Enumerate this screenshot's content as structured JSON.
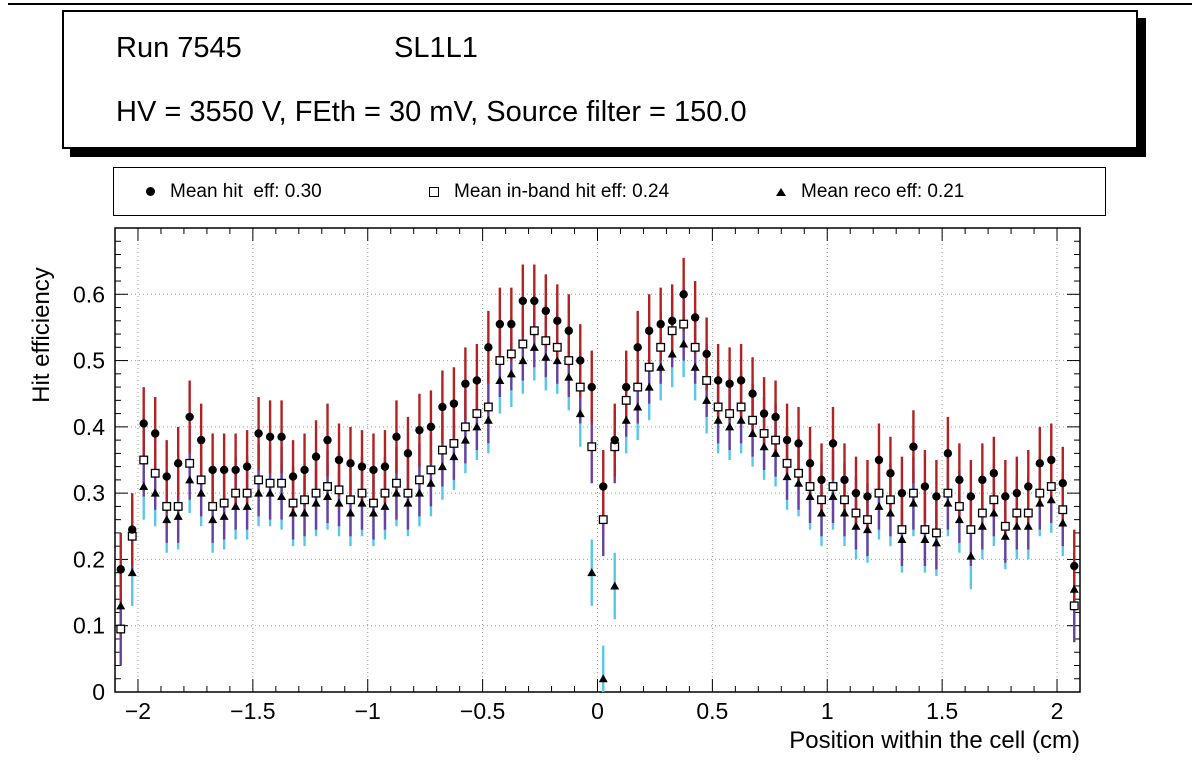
{
  "title_box": {
    "run": "Run 7545",
    "chamber": "SL1L1",
    "conditions": "HV = 3550 V, FEth = 30 mV, Source filter = 150.0"
  },
  "legend": {
    "entries": [
      {
        "marker": "filled-circle",
        "label": "Mean hit  eff: 0.30"
      },
      {
        "marker": "open-square",
        "label": "Mean in-band hit eff: 0.24"
      },
      {
        "marker": "filled-triangle",
        "label": "Mean reco eff: 0.21"
      }
    ]
  },
  "axes": {
    "x_title": "Position within the cell (cm)",
    "y_title": "Hit efficiency",
    "x_range": [
      -2.1,
      2.1
    ],
    "y_range": [
      0,
      0.7
    ],
    "x_ticks": [
      {
        "v": -2,
        "label": "−2"
      },
      {
        "v": -1.5,
        "label": "−1.5"
      },
      {
        "v": -1,
        "label": "−1"
      },
      {
        "v": -0.5,
        "label": "−0.5"
      },
      {
        "v": 0,
        "label": "0"
      },
      {
        "v": 0.5,
        "label": "0.5"
      },
      {
        "v": 1,
        "label": "1"
      },
      {
        "v": 1.5,
        "label": "1.5"
      },
      {
        "v": 2,
        "label": "2"
      }
    ],
    "y_ticks": [
      {
        "v": 0,
        "label": "0"
      },
      {
        "v": 0.1,
        "label": "0.1"
      },
      {
        "v": 0.2,
        "label": "0.2"
      },
      {
        "v": 0.3,
        "label": "0.3"
      },
      {
        "v": 0.4,
        "label": "0.4"
      },
      {
        "v": 0.5,
        "label": "0.5"
      },
      {
        "v": 0.6,
        "label": "0.6"
      }
    ],
    "grid": "dotted"
  },
  "chart_data": {
    "type": "scatter",
    "title": "",
    "xlabel": "Position within the cell (cm)",
    "ylabel": "Hit efficiency",
    "xlim": [
      -2.1,
      2.1
    ],
    "ylim": [
      0,
      0.7
    ],
    "grid": true,
    "legend_position": "top",
    "x": [
      -2.075,
      -2.025,
      -1.975,
      -1.925,
      -1.875,
      -1.825,
      -1.775,
      -1.725,
      -1.675,
      -1.625,
      -1.575,
      -1.525,
      -1.475,
      -1.425,
      -1.375,
      -1.325,
      -1.275,
      -1.225,
      -1.175,
      -1.125,
      -1.075,
      -1.025,
      -0.975,
      -0.925,
      -0.875,
      -0.825,
      -0.775,
      -0.725,
      -0.675,
      -0.625,
      -0.575,
      -0.525,
      -0.475,
      -0.425,
      -0.375,
      -0.325,
      -0.275,
      -0.225,
      -0.175,
      -0.125,
      -0.075,
      -0.025,
      0.025,
      0.075,
      0.125,
      0.175,
      0.225,
      0.275,
      0.325,
      0.375,
      0.425,
      0.475,
      0.525,
      0.575,
      0.625,
      0.675,
      0.725,
      0.775,
      0.825,
      0.875,
      0.925,
      0.975,
      1.025,
      1.075,
      1.125,
      1.175,
      1.225,
      1.275,
      1.325,
      1.375,
      1.425,
      1.475,
      1.525,
      1.575,
      1.625,
      1.675,
      1.725,
      1.775,
      1.825,
      1.875,
      1.925,
      1.975,
      2.025,
      2.075
    ],
    "series": [
      {
        "name": "Mean hit eff: 0.30",
        "marker": "filled-circle",
        "marker_color": "#000000",
        "error_color": "#b22222",
        "error": 0.055,
        "values": [
          0.185,
          0.245,
          0.405,
          0.39,
          0.325,
          0.345,
          0.415,
          0.38,
          0.335,
          0.335,
          0.335,
          0.34,
          0.39,
          0.385,
          0.385,
          0.325,
          0.335,
          0.355,
          0.38,
          0.35,
          0.345,
          0.34,
          0.335,
          0.34,
          0.385,
          0.36,
          0.395,
          0.4,
          0.43,
          0.435,
          0.465,
          0.47,
          0.52,
          0.555,
          0.555,
          0.59,
          0.59,
          0.575,
          0.56,
          0.545,
          0.5,
          0.46,
          0.31,
          0.38,
          0.46,
          0.52,
          0.545,
          0.555,
          0.56,
          0.6,
          0.565,
          0.51,
          0.47,
          0.465,
          0.47,
          0.45,
          0.42,
          0.415,
          0.38,
          0.375,
          0.345,
          0.32,
          0.375,
          0.32,
          0.3,
          0.295,
          0.35,
          0.33,
          0.3,
          0.37,
          0.31,
          0.295,
          0.36,
          0.32,
          0.295,
          0.32,
          0.33,
          0.295,
          0.3,
          0.31,
          0.345,
          0.35,
          0.315,
          0.19
        ]
      },
      {
        "name": "Mean in-band hit eff: 0.24",
        "marker": "open-square",
        "marker_color": "#000000",
        "error_color": "#6b3fa0",
        "error": 0.055,
        "values": [
          0.095,
          0.235,
          0.35,
          0.33,
          0.28,
          0.28,
          0.345,
          0.32,
          0.28,
          0.285,
          0.3,
          0.3,
          0.32,
          0.315,
          0.315,
          0.285,
          0.29,
          0.3,
          0.31,
          0.305,
          0.29,
          0.3,
          0.285,
          0.3,
          0.315,
          0.3,
          0.32,
          0.335,
          0.365,
          0.375,
          0.4,
          0.42,
          0.43,
          0.5,
          0.51,
          0.525,
          0.545,
          0.53,
          0.52,
          0.5,
          0.46,
          0.37,
          0.26,
          0.37,
          0.44,
          0.46,
          0.49,
          0.52,
          0.545,
          0.555,
          0.52,
          0.47,
          0.43,
          0.42,
          0.43,
          0.41,
          0.39,
          0.38,
          0.345,
          0.33,
          0.31,
          0.29,
          0.31,
          0.29,
          0.27,
          0.26,
          0.3,
          0.29,
          0.245,
          0.3,
          0.245,
          0.24,
          0.3,
          0.28,
          0.245,
          0.27,
          0.29,
          0.25,
          0.27,
          0.27,
          0.3,
          0.31,
          0.275,
          0.13
        ]
      },
      {
        "name": "Mean reco eff: 0.21",
        "marker": "filled-triangle",
        "marker_color": "#000000",
        "error_color": "#58c7e8",
        "error": 0.05,
        "values": [
          0.13,
          0.18,
          0.31,
          0.3,
          0.26,
          0.265,
          0.32,
          0.3,
          0.26,
          0.265,
          0.28,
          0.28,
          0.3,
          0.3,
          0.295,
          0.27,
          0.27,
          0.285,
          0.295,
          0.285,
          0.27,
          0.285,
          0.27,
          0.28,
          0.3,
          0.285,
          0.3,
          0.315,
          0.34,
          0.355,
          0.38,
          0.4,
          0.41,
          0.47,
          0.48,
          0.5,
          0.52,
          0.505,
          0.5,
          0.475,
          0.42,
          0.18,
          0.02,
          0.16,
          0.41,
          0.43,
          0.46,
          0.49,
          0.51,
          0.525,
          0.49,
          0.44,
          0.41,
          0.4,
          0.41,
          0.39,
          0.37,
          0.36,
          0.325,
          0.315,
          0.295,
          0.27,
          0.295,
          0.27,
          0.25,
          0.245,
          0.28,
          0.27,
          0.23,
          0.285,
          0.23,
          0.225,
          0.285,
          0.26,
          0.205,
          0.25,
          0.27,
          0.235,
          0.25,
          0.25,
          0.285,
          0.29,
          0.255,
          0.155
        ]
      }
    ]
  }
}
